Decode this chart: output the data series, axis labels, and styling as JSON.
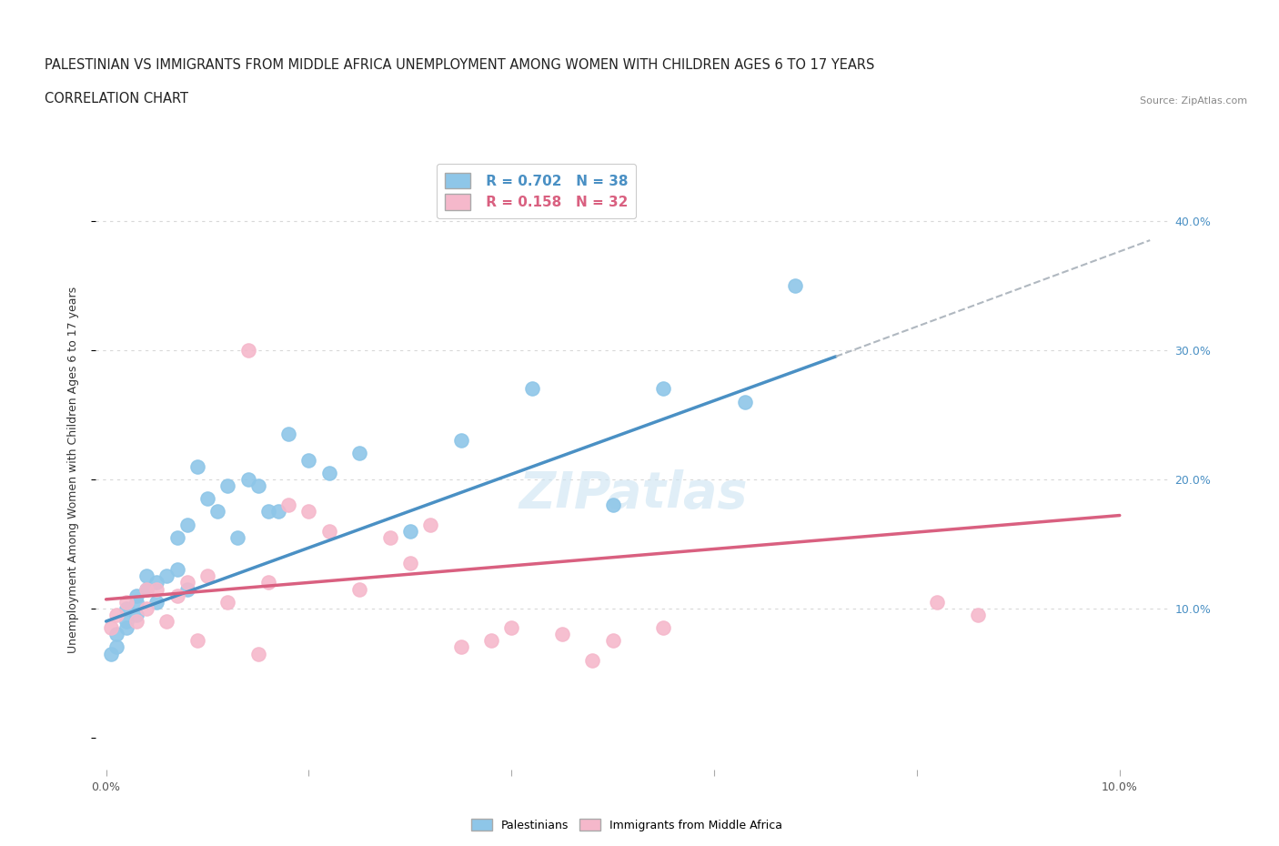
{
  "title_line1": "PALESTINIAN VS IMMIGRANTS FROM MIDDLE AFRICA UNEMPLOYMENT AMONG WOMEN WITH CHILDREN AGES 6 TO 17 YEARS",
  "title_line2": "CORRELATION CHART",
  "source": "Source: ZipAtlas.com",
  "ylabel": "Unemployment Among Women with Children Ages 6 to 17 years",
  "xlim": [
    -0.001,
    0.105
  ],
  "ylim": [
    -0.025,
    0.44
  ],
  "xticks": [
    0.0,
    0.02,
    0.04,
    0.06,
    0.08,
    0.1
  ],
  "xtick_labels": [
    "0.0%",
    "",
    "",
    "",
    "",
    "10.0%"
  ],
  "right_yticks": [
    0.1,
    0.2,
    0.3,
    0.4
  ],
  "right_ytick_labels": [
    "10.0%",
    "20.0%",
    "30.0%",
    "40.0%"
  ],
  "blue_color": "#8ec6e8",
  "pink_color": "#f5b8cb",
  "blue_line_color": "#4a90c4",
  "pink_line_color": "#d96080",
  "dashed_line_color": "#b0b8c0",
  "watermark": "ZIPatlas",
  "R_blue": 0.702,
  "N_blue": 38,
  "R_pink": 0.158,
  "N_pink": 32,
  "blue_scatter_x": [
    0.0005,
    0.001,
    0.001,
    0.002,
    0.002,
    0.002,
    0.003,
    0.003,
    0.003,
    0.004,
    0.004,
    0.005,
    0.005,
    0.006,
    0.007,
    0.007,
    0.008,
    0.008,
    0.009,
    0.01,
    0.011,
    0.012,
    0.013,
    0.014,
    0.015,
    0.016,
    0.017,
    0.018,
    0.02,
    0.022,
    0.025,
    0.03,
    0.035,
    0.042,
    0.05,
    0.055,
    0.063,
    0.068
  ],
  "blue_scatter_y": [
    0.065,
    0.07,
    0.08,
    0.085,
    0.09,
    0.1,
    0.095,
    0.105,
    0.11,
    0.115,
    0.125,
    0.105,
    0.12,
    0.125,
    0.13,
    0.155,
    0.115,
    0.165,
    0.21,
    0.185,
    0.175,
    0.195,
    0.155,
    0.2,
    0.195,
    0.175,
    0.175,
    0.235,
    0.215,
    0.205,
    0.22,
    0.16,
    0.23,
    0.27,
    0.18,
    0.27,
    0.26,
    0.35
  ],
  "pink_scatter_x": [
    0.0005,
    0.001,
    0.002,
    0.003,
    0.004,
    0.004,
    0.005,
    0.006,
    0.007,
    0.008,
    0.009,
    0.01,
    0.012,
    0.014,
    0.015,
    0.016,
    0.018,
    0.02,
    0.022,
    0.025,
    0.028,
    0.03,
    0.032,
    0.035,
    0.038,
    0.04,
    0.045,
    0.048,
    0.05,
    0.055,
    0.082,
    0.086
  ],
  "pink_scatter_y": [
    0.085,
    0.095,
    0.105,
    0.09,
    0.1,
    0.115,
    0.115,
    0.09,
    0.11,
    0.12,
    0.075,
    0.125,
    0.105,
    0.3,
    0.065,
    0.12,
    0.18,
    0.175,
    0.16,
    0.115,
    0.155,
    0.135,
    0.165,
    0.07,
    0.075,
    0.085,
    0.08,
    0.06,
    0.075,
    0.085,
    0.105,
    0.095
  ],
  "blue_trend_x": [
    0.0,
    0.072
  ],
  "blue_trend_y": [
    0.09,
    0.295
  ],
  "pink_trend_x": [
    0.0,
    0.1
  ],
  "pink_trend_y": [
    0.107,
    0.172
  ],
  "dashed_trend_x": [
    0.072,
    0.103
  ],
  "dashed_trend_y": [
    0.295,
    0.385
  ],
  "grid_color": "#d8d8d8",
  "bg_color": "#ffffff",
  "title_fontsize": 10.5,
  "subtitle_fontsize": 10.5,
  "source_fontsize": 8,
  "label_fontsize": 9,
  "tick_fontsize": 9,
  "legend_fontsize": 11,
  "marker_size": 120
}
